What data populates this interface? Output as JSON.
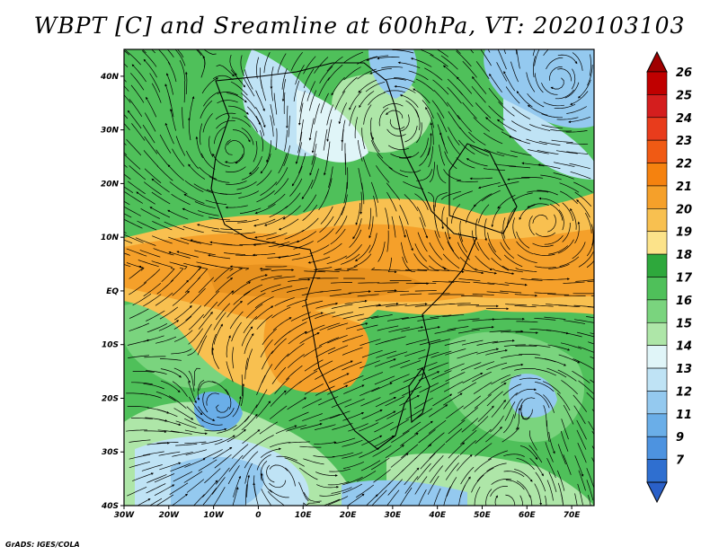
{
  "title": "WBPT [C] and Sreamline at 600hPa, VT: 2020103103",
  "credit": "GrADS: IGES/COLA",
  "map": {
    "projection": "latlon",
    "lon_range": [
      -30,
      75
    ],
    "lat_range": [
      -40,
      45
    ],
    "x_ticks": [
      {
        "value": -30,
        "label": "30W"
      },
      {
        "value": -20,
        "label": "20W"
      },
      {
        "value": -10,
        "label": "10W"
      },
      {
        "value": 0,
        "label": "0"
      },
      {
        "value": 10,
        "label": "10E"
      },
      {
        "value": 20,
        "label": "20E"
      },
      {
        "value": 30,
        "label": "30E"
      },
      {
        "value": 40,
        "label": "40E"
      },
      {
        "value": 50,
        "label": "50E"
      },
      {
        "value": 60,
        "label": "60E"
      },
      {
        "value": 70,
        "label": "70E"
      }
    ],
    "y_ticks": [
      {
        "value": 40,
        "label": "40N"
      },
      {
        "value": 30,
        "label": "30N"
      },
      {
        "value": 20,
        "label": "20N"
      },
      {
        "value": 10,
        "label": "10N"
      },
      {
        "value": 0,
        "label": "EQ"
      },
      {
        "value": -10,
        "label": "10S"
      },
      {
        "value": -20,
        "label": "20S"
      },
      {
        "value": -30,
        "label": "30S"
      },
      {
        "value": -40,
        "label": "40S"
      }
    ],
    "field": "wet-bulb potential temperature",
    "overlay": "streamlines"
  },
  "colorbar": {
    "labels": [
      "26",
      "25",
      "24",
      "23",
      "22",
      "21",
      "20",
      "19",
      "18",
      "17",
      "16",
      "15",
      "14",
      "13",
      "12",
      "11",
      "9",
      "7"
    ],
    "colors": [
      "#c00000",
      "#d41e1e",
      "#e83c1c",
      "#f05a14",
      "#f5820f",
      "#f5a02a",
      "#f8c050",
      "#fce38a",
      "#2ea83c",
      "#4fc05a",
      "#7ad47e",
      "#aee6a8",
      "#e0f5f8",
      "#bfe3f5",
      "#94c9ef",
      "#6aaee8",
      "#4d93e0",
      "#2f6fd0"
    ]
  },
  "regions": [
    {
      "name": "warm-band-north",
      "color": "#f5a02a"
    },
    {
      "name": "warm-core-equator",
      "color": "#e8921f"
    },
    {
      "name": "warm-band-south",
      "color": "#f8c050"
    },
    {
      "name": "cool-anticyclone-east",
      "color": "#94c9ef"
    },
    {
      "name": "cool-anticyclone-west",
      "color": "#6aaee8"
    },
    {
      "name": "cool-north",
      "color": "#bfe3f5"
    }
  ]
}
